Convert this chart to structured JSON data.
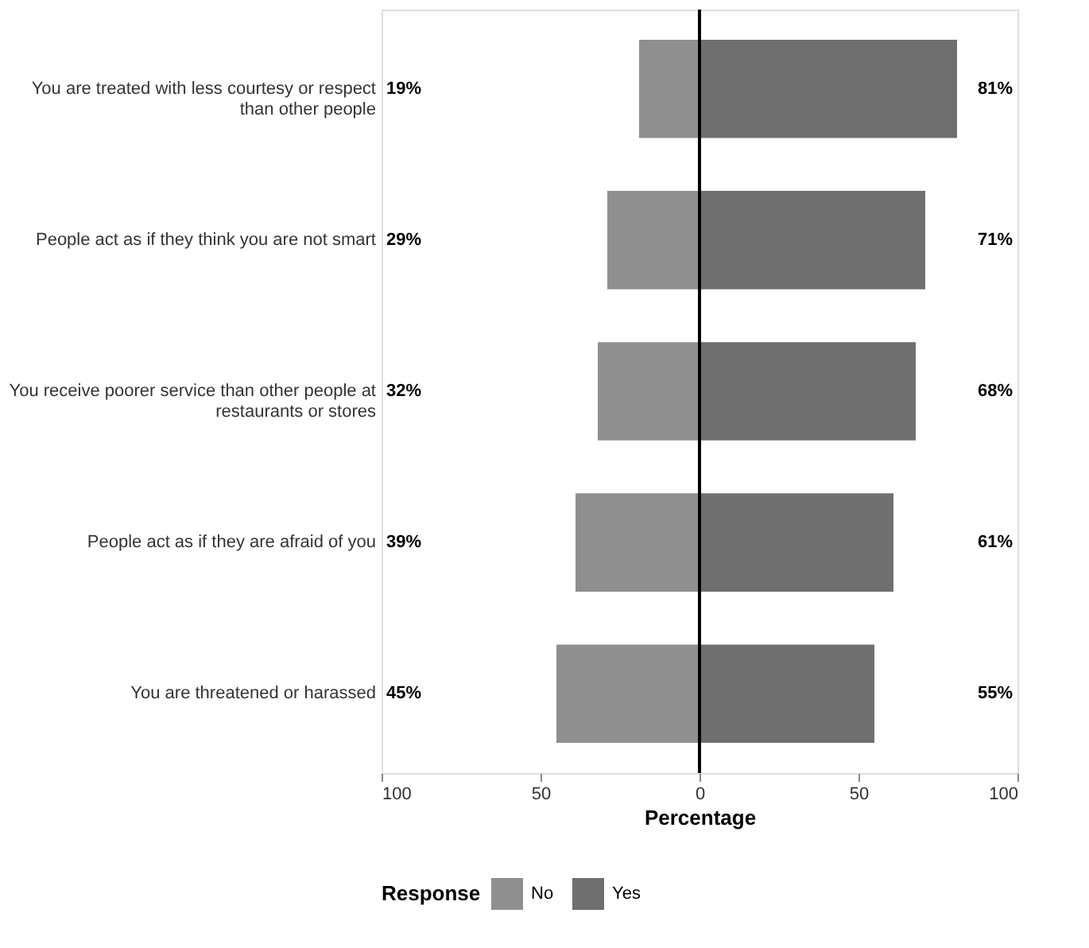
{
  "chart_data": {
    "type": "bar",
    "orientation": "horizontal",
    "xlabel": "Percentage",
    "legend_title": "Response",
    "legend": "bottom",
    "categories": [
      "You are treated with less courtesy or respect than other people",
      "People act as if they think you are not smart",
      "You receive poorer service than other people at restaurants or stores",
      "People act as if they are afraid of you",
      "You are threatened or harassed"
    ],
    "series": [
      {
        "name": "No",
        "color": "#8f8f8f",
        "values": [
          19,
          29,
          32,
          39,
          45
        ],
        "base": [
          -19,
          -29,
          -32,
          -39,
          -45
        ],
        "value_labels": [
          "19%",
          "29%",
          "32%",
          "39%",
          "45%"
        ]
      },
      {
        "name": "Yes",
        "color": "#6f6f6f",
        "values": [
          81,
          71,
          68,
          61,
          55
        ],
        "base": [
          0,
          0,
          0,
          0,
          0
        ],
        "value_labels": [
          "81%",
          "71%",
          "68%",
          "61%",
          "55%"
        ]
      }
    ],
    "xlim": [
      -100,
      100
    ],
    "xticks": [
      {
        "value": -100,
        "label": "100"
      },
      {
        "value": -50,
        "label": "50"
      },
      0,
      50,
      100
    ],
    "ref_lines": [
      {
        "axis": "x",
        "value": 0,
        "color": "#000000"
      }
    ],
    "grid": false
  }
}
